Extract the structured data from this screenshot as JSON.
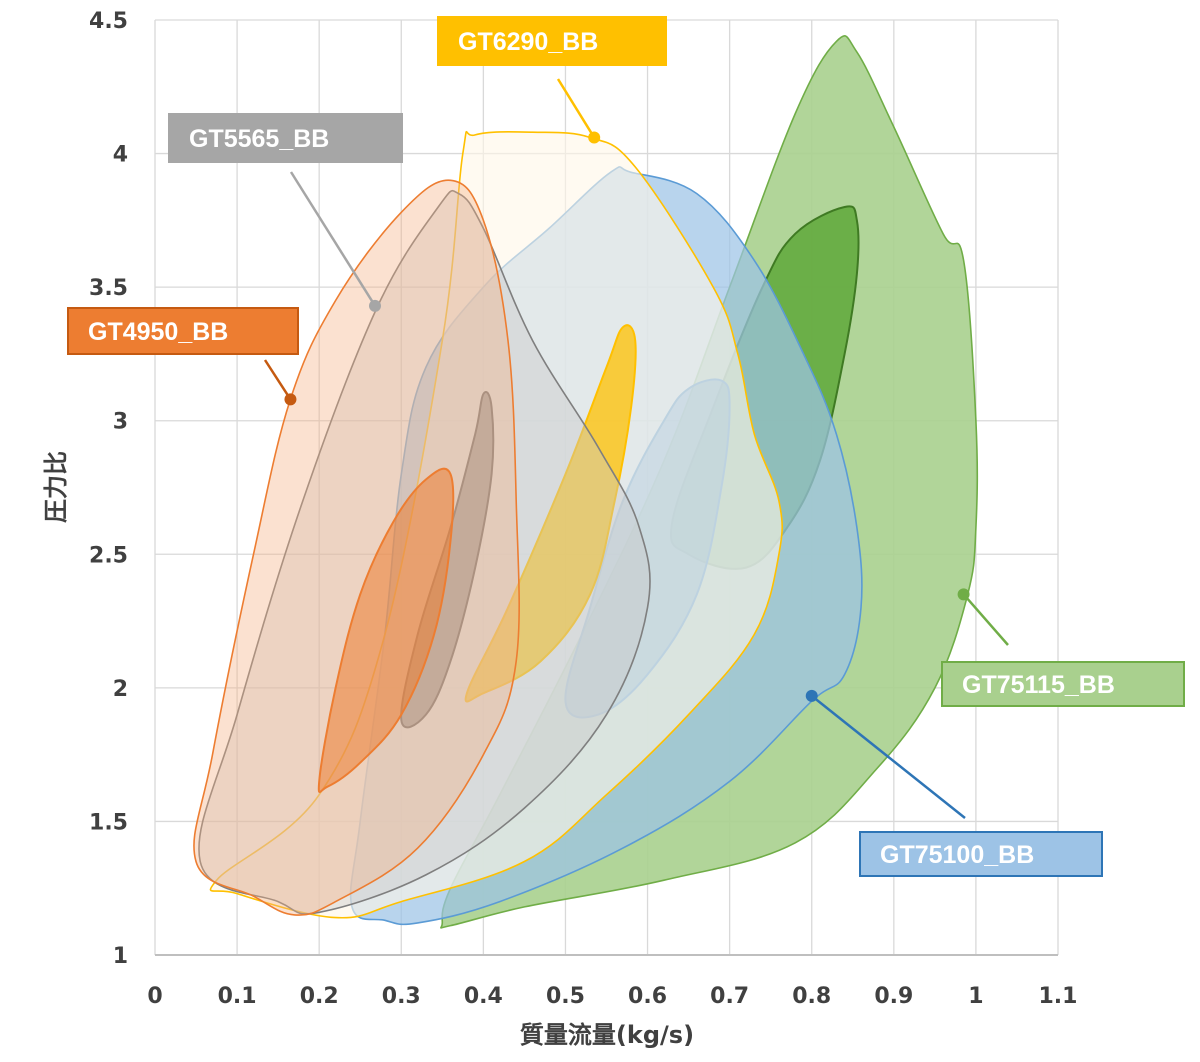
{
  "chart_data": {
    "type": "area",
    "title": "",
    "xlabel": "質量流量(kg/s)",
    "ylabel": "圧力比",
    "xlim": [
      0,
      1.1
    ],
    "ylim": [
      1,
      4.5
    ],
    "xticks": [
      "0",
      "0.1",
      "0.2",
      "0.3",
      "0.4",
      "0.5",
      "0.6",
      "0.7",
      "0.8",
      "0.9",
      "1",
      "1.1"
    ],
    "yticks": [
      "1",
      "1.5",
      "2",
      "2.5",
      "3",
      "3.5",
      "4",
      "4.5"
    ],
    "grid": true,
    "legend": "callout labels",
    "series": [
      {
        "name": "GT75115_BB",
        "color": "#70ad47",
        "fill": "#a9d08e",
        "outline": [
          [
            0.35,
            1.12
          ],
          [
            0.36,
            1.25
          ],
          [
            0.42,
            1.6
          ],
          [
            0.52,
            2.2
          ],
          [
            0.62,
            2.85
          ],
          [
            0.7,
            3.5
          ],
          [
            0.78,
            4.15
          ],
          [
            0.83,
            4.42
          ],
          [
            0.855,
            4.38
          ],
          [
            0.9,
            4.1
          ],
          [
            0.96,
            3.7
          ],
          [
            0.985,
            3.6
          ],
          [
            1.0,
            3.0
          ],
          [
            1.0,
            2.6
          ],
          [
            0.99,
            2.35
          ],
          [
            0.95,
            2.0
          ],
          [
            0.88,
            1.7
          ],
          [
            0.78,
            1.42
          ],
          [
            0.62,
            1.28
          ],
          [
            0.45,
            1.18
          ],
          [
            0.36,
            1.11
          ]
        ],
        "island": [
          [
            0.63,
            2.62
          ],
          [
            0.68,
            3.05
          ],
          [
            0.74,
            3.5
          ],
          [
            0.78,
            3.7
          ],
          [
            0.84,
            3.8
          ],
          [
            0.855,
            3.75
          ],
          [
            0.855,
            3.55
          ],
          [
            0.84,
            3.25
          ],
          [
            0.81,
            2.85
          ],
          [
            0.77,
            2.6
          ],
          [
            0.72,
            2.45
          ],
          [
            0.65,
            2.5
          ]
        ],
        "callout": {
          "text": "GT75115_BB",
          "point": [
            0.985,
            2.35
          ]
        }
      },
      {
        "name": "GT75100_BB",
        "color": "#5b9bd5",
        "fill": "#9dc3e6",
        "outline": [
          [
            0.24,
            1.18
          ],
          [
            0.25,
            1.5
          ],
          [
            0.28,
            2.2
          ],
          [
            0.3,
            2.8
          ],
          [
            0.33,
            3.2
          ],
          [
            0.4,
            3.5
          ],
          [
            0.48,
            3.72
          ],
          [
            0.555,
            3.93
          ],
          [
            0.58,
            3.93
          ],
          [
            0.66,
            3.85
          ],
          [
            0.73,
            3.6
          ],
          [
            0.79,
            3.25
          ],
          [
            0.83,
            2.95
          ],
          [
            0.855,
            2.6
          ],
          [
            0.86,
            2.3
          ],
          [
            0.84,
            2.05
          ],
          [
            0.8,
            1.95
          ],
          [
            0.7,
            1.65
          ],
          [
            0.57,
            1.4
          ],
          [
            0.42,
            1.2
          ],
          [
            0.32,
            1.12
          ],
          [
            0.28,
            1.13
          ]
        ],
        "island": [
          [
            0.5,
            1.95
          ],
          [
            0.53,
            2.3
          ],
          [
            0.57,
            2.7
          ],
          [
            0.62,
            3.0
          ],
          [
            0.65,
            3.12
          ],
          [
            0.69,
            3.15
          ],
          [
            0.7,
            3.05
          ],
          [
            0.69,
            2.75
          ],
          [
            0.66,
            2.35
          ],
          [
            0.6,
            2.05
          ],
          [
            0.54,
            1.9
          ]
        ],
        "callout": {
          "text": "GT75100_BB",
          "point": [
            0.8,
            1.97
          ]
        }
      },
      {
        "name": "GT6290_BB",
        "color": "#ffc000",
        "fill": "#ffd966",
        "fill_light": "#fff7e8",
        "outline": [
          [
            0.075,
            1.28
          ],
          [
            0.2,
            1.6
          ],
          [
            0.28,
            2.2
          ],
          [
            0.35,
            3.3
          ],
          [
            0.375,
            4.0
          ],
          [
            0.39,
            4.07
          ],
          [
            0.46,
            4.08
          ],
          [
            0.53,
            4.06
          ],
          [
            0.585,
            3.95
          ],
          [
            0.68,
            3.5
          ],
          [
            0.71,
            3.25
          ],
          [
            0.73,
            2.95
          ],
          [
            0.76,
            2.7
          ],
          [
            0.76,
            2.5
          ],
          [
            0.73,
            2.2
          ],
          [
            0.65,
            1.9
          ],
          [
            0.55,
            1.6
          ],
          [
            0.45,
            1.35
          ],
          [
            0.3,
            1.2
          ],
          [
            0.22,
            1.14
          ],
          [
            0.1,
            1.23
          ]
        ],
        "island": [
          [
            0.38,
            1.98
          ],
          [
            0.43,
            2.3
          ],
          [
            0.5,
            2.8
          ],
          [
            0.55,
            3.2
          ],
          [
            0.57,
            3.35
          ],
          [
            0.585,
            3.3
          ],
          [
            0.58,
            3.05
          ],
          [
            0.56,
            2.7
          ],
          [
            0.53,
            2.35
          ],
          [
            0.47,
            2.1
          ],
          [
            0.4,
            1.98
          ]
        ],
        "callout": {
          "text": "GT6290_BB",
          "point": [
            0.535,
            4.06
          ]
        }
      },
      {
        "name": "GT5565_BB",
        "color": "#7f7f7f",
        "fill": "#c9c9c9",
        "outline": [
          [
            0.055,
            1.35
          ],
          [
            0.1,
            1.9
          ],
          [
            0.18,
            2.7
          ],
          [
            0.27,
            3.42
          ],
          [
            0.345,
            3.8
          ],
          [
            0.37,
            3.85
          ],
          [
            0.4,
            3.72
          ],
          [
            0.46,
            3.3
          ],
          [
            0.54,
            2.9
          ],
          [
            0.59,
            2.6
          ],
          [
            0.6,
            2.3
          ],
          [
            0.55,
            1.9
          ],
          [
            0.45,
            1.55
          ],
          [
            0.33,
            1.3
          ],
          [
            0.2,
            1.16
          ],
          [
            0.15,
            1.2
          ]
        ],
        "island": [
          [
            0.3,
            1.88
          ],
          [
            0.32,
            2.2
          ],
          [
            0.36,
            2.6
          ],
          [
            0.39,
            2.95
          ],
          [
            0.4,
            3.1
          ],
          [
            0.41,
            3.05
          ],
          [
            0.41,
            2.8
          ],
          [
            0.39,
            2.45
          ],
          [
            0.36,
            2.1
          ],
          [
            0.33,
            1.9
          ]
        ],
        "callout": {
          "text": "GT5565_BB",
          "point": [
            0.268,
            3.43
          ]
        }
      },
      {
        "name": "GT4950_BB",
        "color": "#ed7d31",
        "fill": "#f4b183",
        "outline": [
          [
            0.05,
            1.35
          ],
          [
            0.07,
            1.75
          ],
          [
            0.12,
            2.5
          ],
          [
            0.165,
            3.08
          ],
          [
            0.22,
            3.45
          ],
          [
            0.3,
            3.78
          ],
          [
            0.36,
            3.9
          ],
          [
            0.4,
            3.75
          ],
          [
            0.43,
            3.3
          ],
          [
            0.44,
            2.7
          ],
          [
            0.44,
            2.1
          ],
          [
            0.4,
            1.75
          ],
          [
            0.32,
            1.4
          ],
          [
            0.22,
            1.2
          ],
          [
            0.17,
            1.15
          ],
          [
            0.12,
            1.22
          ]
        ],
        "island": [
          [
            0.2,
            1.65
          ],
          [
            0.22,
            2.0
          ],
          [
            0.25,
            2.35
          ],
          [
            0.29,
            2.62
          ],
          [
            0.33,
            2.78
          ],
          [
            0.36,
            2.8
          ],
          [
            0.36,
            2.55
          ],
          [
            0.34,
            2.2
          ],
          [
            0.3,
            1.9
          ],
          [
            0.25,
            1.72
          ],
          [
            0.21,
            1.63
          ]
        ],
        "callout": {
          "text": "GT4950_BB",
          "point": [
            0.165,
            3.08
          ]
        }
      }
    ]
  }
}
